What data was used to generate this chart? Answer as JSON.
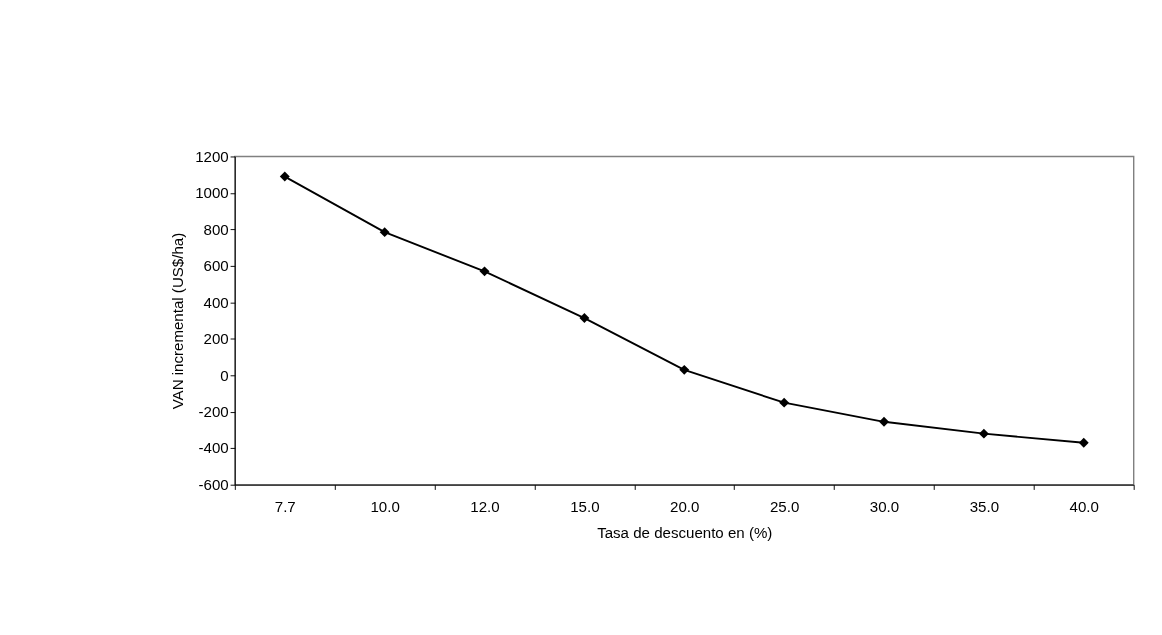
{
  "chart_data": {
    "type": "line",
    "xlabel": "Tasa de descuento en (%)",
    "ylabel": "VAN  incremental (US$/ha)",
    "categories": [
      "7.7",
      "10.0",
      "12.0",
      "15.0",
      "20.0",
      "25.0",
      "30.0",
      "35.0",
      "40.0"
    ],
    "series": [
      {
        "color": "#000000",
        "values": [
          1090,
          785,
          570,
          314,
          30,
          -150,
          -255,
          -320,
          -370
        ]
      }
    ],
    "ylim": [
      -600,
      1200
    ],
    "yticks": [
      -600,
      -400,
      -200,
      0,
      200,
      400,
      600,
      800,
      1000,
      1200
    ],
    "grid": false,
    "marker": "diamond",
    "line_style": "solid"
  }
}
